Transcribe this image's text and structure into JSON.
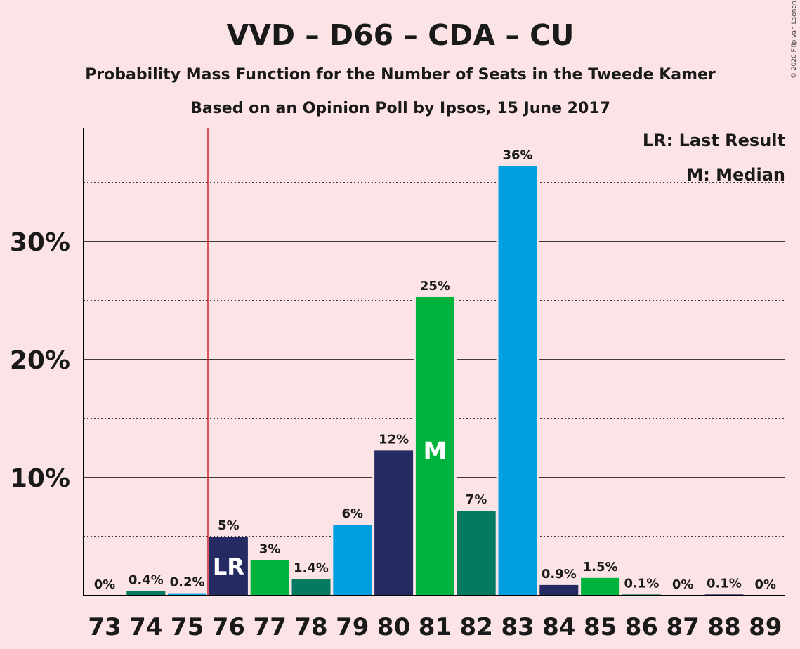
{
  "chart_data": {
    "type": "bar",
    "title": "VVD – D66 – CDA – CU",
    "subtitle": "Probability Mass Function for the Number of Seats in the Tweede Kamer",
    "subtitle2": "Based on an Opinion Poll by Ipsos, 15 June 2017",
    "copyright": "© 2020 Filip van Laenen",
    "legend": {
      "last_result": "LR: Last Result",
      "median": "M: Median",
      "placement": "top-right"
    },
    "xlabel": "",
    "ylabel": "",
    "ylim": [
      0,
      40
    ],
    "y_major_ticks": [
      {
        "value": 10,
        "label": "10%"
      },
      {
        "value": 20,
        "label": "20%"
      },
      {
        "value": 30,
        "label": "30%"
      }
    ],
    "y_minor_gridlines": [
      5,
      15,
      25,
      35
    ],
    "last_result_seat": 76,
    "median_seat": 81,
    "marker_labels": {
      "last_result": "LR",
      "median": "M"
    },
    "categories": [
      "73",
      "74",
      "75",
      "76",
      "77",
      "78",
      "79",
      "80",
      "81",
      "82",
      "83",
      "84",
      "85",
      "86",
      "87",
      "88",
      "89"
    ],
    "values": [
      0,
      0.4,
      0.2,
      5,
      3,
      1.4,
      6,
      12.3,
      25.3,
      7.2,
      36.4,
      0.9,
      1.5,
      0.1,
      0,
      0.1,
      0
    ],
    "value_labels": [
      "0%",
      "0.4%",
      "0.2%",
      "5%",
      "3%",
      "1.4%",
      "6%",
      "12%",
      "25%",
      "7%",
      "36%",
      "0.9%",
      "1.5%",
      "0.1%",
      "0%",
      "0.1%",
      "0%"
    ],
    "colors": [
      "#262a63",
      "#047a60",
      "#009fe0",
      "#262a63",
      "#00b33c",
      "#047a60",
      "#009fe0",
      "#262a63",
      "#00b33c",
      "#047a60",
      "#009fe0",
      "#262a63",
      "#00b33c",
      "#047a60",
      "#009fe0",
      "#262a63",
      "#00b33c"
    ],
    "last_result_line_color": "#cc2233"
  }
}
